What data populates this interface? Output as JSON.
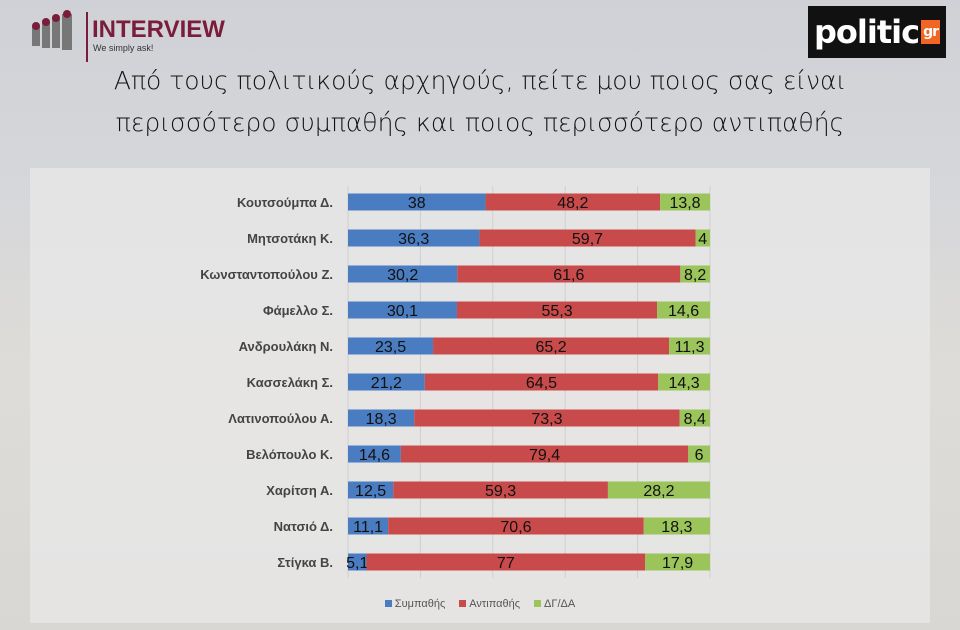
{
  "header": {
    "brand": "INTERVIEW",
    "tagline": "We simply ask!",
    "partner_logo": "politic",
    "partner_logo_suffix": "gr"
  },
  "title_lines": [
    "Από τους πολιτικούς αρχηγούς, πείτε μου ποιος σας είναι",
    "περισσότερο συμπαθής και ποιος περισσότερο αντιπαθής"
  ],
  "colors": {
    "Συμπαθής": "#4a7cc2",
    "Αντιπαθής": "#c94a4a",
    "ΔΓ/ΔΑ": "#9bc45a"
  },
  "chart_data": {
    "type": "bar",
    "stacked": true,
    "orientation": "horizontal",
    "xlim": [
      0,
      100
    ],
    "legend_position": "bottom",
    "categories": [
      "Κουτσούμπα Δ.",
      "Μητσοτάκη Κ.",
      "Κωνσταντοπούλου Ζ.",
      "Φάμελλο Σ.",
      "Ανδρουλάκη Ν.",
      "Κασσελάκη Σ.",
      "Λατινοπούλου Α.",
      "Βελόπουλο Κ.",
      "Χαρίτση Α.",
      "Νατσιό Δ.",
      "Στίγκα Β."
    ],
    "series": [
      {
        "name": "Συμπαθής",
        "values": [
          38,
          36.3,
          30.2,
          30.1,
          23.5,
          21.2,
          18.3,
          14.6,
          12.5,
          11.1,
          5.1
        ]
      },
      {
        "name": "Αντιπαθής",
        "values": [
          48.2,
          59.7,
          61.6,
          55.3,
          65.2,
          64.5,
          73.3,
          79.4,
          59.3,
          70.6,
          77
        ]
      },
      {
        "name": "ΔΓ/ΔΑ",
        "values": [
          13.8,
          4,
          8.2,
          14.6,
          11.3,
          14.3,
          8.4,
          6,
          28.2,
          18.3,
          17.9
        ]
      }
    ]
  }
}
